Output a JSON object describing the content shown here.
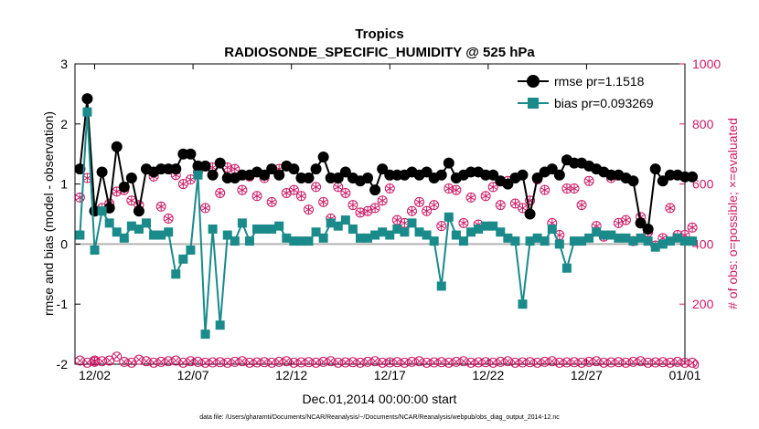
{
  "chart_data": {
    "type": "line",
    "title": "Tropics",
    "subtitle": "RADIOSONDE_SPECIFIC_HUMIDITY @ 525 hPa",
    "xlabel": "Dec.01,2014 00:00:00 start",
    "ylabel": "rmse and bias (model - observation)",
    "ylabel_right": "# of obs: o=possible; ×=evaluated",
    "footnote": "data file: /Users/gharamti/Documents/NCAR/Reanalysis/~/Documents/NCAR/Reanalysis/webpub/obs_diag_output_2014-12.nc",
    "xlim": [
      1,
      32
    ],
    "ylim": [
      -2,
      3
    ],
    "ylim_right": [
      0,
      1000
    ],
    "xticks": [
      2,
      7,
      12,
      17,
      22,
      27,
      32
    ],
    "xtick_labels": [
      "12/02",
      "12/07",
      "12/12",
      "12/17",
      "12/22",
      "12/27",
      "01/01"
    ],
    "yticks": [
      "-2",
      "-1",
      "0",
      "1",
      "2",
      "3"
    ],
    "yticks_right": [
      "0",
      "200",
      "400",
      "600",
      "800",
      "1000"
    ],
    "colors": {
      "rmse": "#000000",
      "bias": "#1a8a8a",
      "obs": "#cc1a66",
      "zero": "#b4b4b4"
    },
    "series": [
      {
        "name": "rmse",
        "legend": "rmse pr=1.1518",
        "values": [
          1.25,
          2.42,
          0.55,
          1.2,
          0.6,
          1.62,
          0.95,
          1.1,
          0.55,
          1.25,
          1.2,
          1.25,
          1.25,
          1.25,
          1.5,
          1.5,
          1.3,
          1.3,
          1.15,
          1.35,
          1.1,
          1.1,
          1.15,
          1.15,
          1.2,
          1.15,
          1.25,
          1.15,
          1.3,
          1.25,
          1.1,
          1.1,
          1.25,
          1.45,
          1.1,
          1.1,
          1.2,
          1.1,
          1.05,
          1.1,
          0.9,
          1.25,
          1.15,
          1.15,
          1.15,
          1.2,
          1.15,
          1.2,
          1.1,
          1.15,
          1.35,
          1.1,
          1.15,
          1.2,
          1.2,
          1.15,
          1.15,
          1.05,
          1.0,
          1.1,
          1.15,
          0.5,
          1.1,
          1.2,
          1.25,
          1.15,
          1.4,
          1.35,
          1.35,
          1.3,
          1.25,
          1.2,
          1.15,
          1.15,
          1.1,
          1.05,
          0.35,
          0.25,
          1.25,
          1.05,
          1.15,
          1.15,
          1.12,
          1.12
        ]
      },
      {
        "name": "bias",
        "legend": "bias pr=0.093269",
        "values": [
          0.15,
          2.2,
          -0.1,
          0.55,
          0.35,
          0.2,
          0.1,
          0.3,
          0.25,
          0.35,
          0.15,
          0.15,
          0.2,
          -0.5,
          -0.25,
          -0.1,
          1.15,
          -1.5,
          0.25,
          -1.35,
          0.15,
          0.05,
          0.35,
          0.05,
          0.25,
          0.25,
          0.25,
          0.3,
          0.1,
          0.05,
          0.05,
          0.05,
          0.2,
          0.1,
          0.35,
          0.3,
          0.4,
          0.25,
          0.1,
          0.1,
          0.15,
          0.2,
          0.15,
          0.25,
          0.2,
          0.35,
          0.2,
          0.15,
          0.05,
          -0.7,
          0.45,
          0.15,
          0.05,
          0.2,
          0.25,
          0.3,
          0.3,
          0.2,
          0.1,
          0.05,
          -1.0,
          0.05,
          0.1,
          0.05,
          0.25,
          0.0,
          -0.4,
          0.05,
          0.05,
          0.1,
          0.2,
          0.15,
          0.15,
          0.1,
          0.1,
          0.05,
          0.1,
          0.05,
          -0.05,
          0.0,
          0.05,
          0.1,
          0.05,
          0.05
        ]
      },
      {
        "name": "obs_possible",
        "values": [
          555,
          620,
          12,
          520,
          535,
          575,
          580,
          545,
          530,
          648,
          625,
          525,
          485,
          630,
          600,
          615,
          640,
          520,
          655,
          570,
          655,
          650,
          580,
          625,
          560,
          620,
          540,
          650,
          570,
          580,
          560,
          515,
          590,
          540,
          485,
          590,
          570,
          530,
          505,
          510,
          520,
          545,
          585,
          480,
          470,
          510,
          540,
          510,
          530,
          460,
          585,
          580,
          470,
          555,
          465,
          560,
          590,
          530,
          610,
          535,
          520,
          545,
          615,
          580,
          470,
          430,
          585,
          585,
          530,
          610,
          460,
          425,
          620,
          470,
          480,
          410,
          490,
          440,
          395,
          420,
          520,
          430,
          430,
          455
        ]
      },
      {
        "name": "obs_evaluated",
        "values": [
          12,
          5,
          8,
          10,
          12,
          25,
          8,
          5,
          15,
          10,
          5,
          8,
          10,
          12,
          5,
          10,
          8,
          5,
          6,
          7,
          5,
          8,
          10,
          5,
          6,
          7,
          5,
          8,
          10,
          5,
          6,
          7,
          5,
          8,
          10,
          5,
          6,
          7,
          5,
          8,
          10,
          5,
          6,
          7,
          5,
          8,
          10,
          5,
          6,
          7,
          5,
          8,
          10,
          5,
          6,
          7,
          5,
          8,
          10,
          5,
          6,
          7,
          5,
          8,
          10,
          5,
          6,
          7,
          5,
          8,
          10,
          5,
          6,
          7,
          5,
          8,
          10,
          5,
          6,
          7,
          5,
          8,
          5,
          5
        ]
      }
    ]
  }
}
